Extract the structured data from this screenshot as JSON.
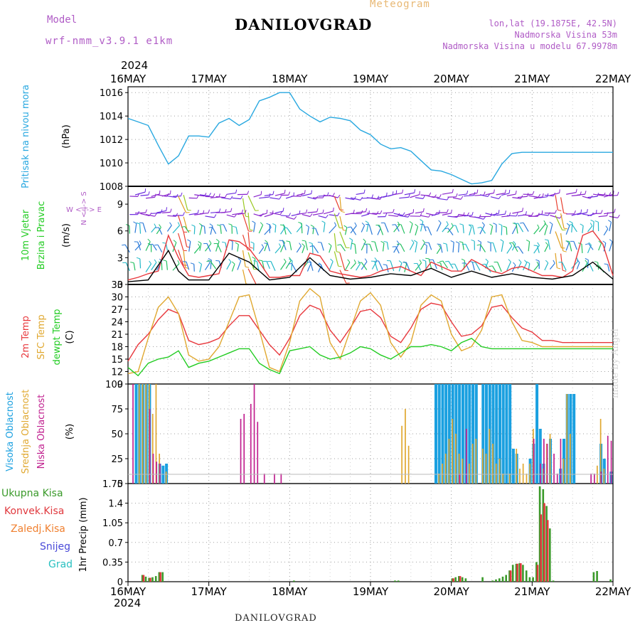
{
  "header": {
    "model_label": "Model",
    "model_name": "wrf-nmm_v3.9.1 e1km",
    "title": "DANILOVGRAD",
    "meteogram_label": "Meteogram",
    "lonlat": "lon,lat (19.1875E, 42.5N)",
    "elevation": "Nadmorska Visina 53m",
    "model_elevation": "Nadmorska Visina u modelu 67.9978m"
  },
  "footer": {
    "station": "DANILOVGRAD",
    "credit": "made by Angel"
  },
  "time_axis": {
    "year_top": "2024",
    "year_bottom": "2024",
    "labels": [
      "16MAY",
      "17MAY",
      "18MAY",
      "19MAY",
      "20MAY",
      "21MAY",
      "22MAY"
    ],
    "days": 6,
    "hours": 144
  },
  "colors": {
    "pressure": "#29a8e0",
    "temp2m": "#e8383d",
    "sfc": "#e0a830",
    "dewpt": "#22cc22",
    "cloud_high": "#1aa0e0",
    "cloud_mid": "#e0a830",
    "cloud_low": "#c0208f",
    "precip_total": "#3a9a2a",
    "precip_conv": "#e0383d",
    "precip_frozen": "#f08030",
    "precip_snow": "#4a4ad8",
    "precip_hail": "#28c0c0"
  },
  "chart_data": [
    {
      "type": "line",
      "panel": "pressure",
      "ylabel_left": "Pritisak na nivou mora",
      "unit": "(hPa)",
      "ylim": [
        1008,
        1016.5
      ],
      "yticks": [
        "1008",
        "1010",
        "1012",
        "1014",
        "1016"
      ],
      "grid": true,
      "series": [
        {
          "color_key": "pressure",
          "x": [
            0,
            3,
            6,
            9,
            12,
            15,
            18,
            21,
            24,
            27,
            30,
            33,
            36,
            39,
            42,
            45,
            48,
            51,
            54,
            57,
            60,
            63,
            66,
            69,
            72,
            75,
            78,
            81,
            84,
            87,
            90,
            93,
            96,
            99,
            102,
            105,
            108,
            111,
            114,
            117,
            120,
            123,
            126,
            129,
            132,
            135,
            138,
            141,
            144
          ],
          "values": [
            1013.8,
            1013.5,
            1013.2,
            1011.5,
            1009.9,
            1010.6,
            1012.3,
            1012.3,
            1012.2,
            1013.4,
            1013.8,
            1013.2,
            1013.7,
            1015.3,
            1015.6,
            1016.0,
            1016.0,
            1014.6,
            1014.0,
            1013.5,
            1013.9,
            1013.8,
            1013.6,
            1012.8,
            1012.4,
            1011.6,
            1011.2,
            1011.3,
            1011.0,
            1010.2,
            1009.4,
            1009.3,
            1009.0,
            1008.6,
            1008.2,
            1008.3,
            1008.5,
            1009.9,
            1010.8,
            1010.9,
            1010.9,
            1010.9,
            1010.9,
            1010.9,
            1010.9,
            1010.9,
            1010.9,
            1010.9,
            1010.9
          ]
        }
      ]
    },
    {
      "type": "line",
      "panel": "wind",
      "ylabel_left": "10m Vjetar",
      "ylabel_left2": "Brzina i Pravac",
      "unit": "(m/s)",
      "ylim": [
        0,
        11
      ],
      "yticks": [
        "0",
        "3",
        "6",
        "9"
      ],
      "compass": "W <-|-> E",
      "compass_v": "N <-|-> S",
      "series": [
        {
          "name": "",
          "color_key": "temp2m",
          "x": [
            0,
            3,
            6,
            9,
            12,
            15,
            18,
            21,
            24,
            27,
            30,
            33,
            36,
            39,
            42,
            45,
            48,
            51,
            54,
            57,
            60,
            63,
            66,
            69,
            72,
            75,
            78,
            81,
            84,
            87,
            90,
            93,
            96,
            99,
            102,
            105,
            108,
            111,
            114,
            117,
            120,
            123,
            126,
            129,
            132,
            135,
            138,
            141,
            144
          ],
          "values": [
            0.5,
            0.8,
            1.2,
            1.5,
            5.5,
            3.0,
            1.0,
            0.8,
            1.0,
            1.2,
            5.0,
            4.8,
            4.0,
            2.5,
            0.8,
            0.8,
            1.0,
            1.0,
            3.5,
            3.2,
            1.5,
            1.2,
            1.0,
            0.8,
            1.0,
            1.5,
            1.8,
            2.0,
            1.5,
            1.0,
            2.5,
            2.0,
            1.5,
            1.5,
            2.8,
            2.2,
            1.5,
            1.2,
            1.8,
            2.0,
            1.5,
            1.0,
            1.0,
            0.8,
            1.5,
            5.5,
            6.0,
            4.5,
            1.0
          ]
        },
        {
          "name": "",
          "color_key": "black",
          "x": [
            0,
            6,
            12,
            15,
            18,
            24,
            30,
            36,
            42,
            48,
            54,
            60,
            66,
            72,
            78,
            84,
            90,
            96,
            102,
            108,
            114,
            120,
            126,
            132,
            138,
            144
          ],
          "values": [
            0.3,
            0.5,
            3.8,
            1.5,
            0.5,
            0.5,
            3.5,
            2.5,
            0.5,
            0.8,
            3.0,
            1.0,
            0.6,
            0.8,
            1.2,
            1.0,
            1.8,
            0.8,
            1.5,
            0.8,
            1.2,
            0.8,
            0.6,
            1.0,
            2.5,
            0.6
          ]
        }
      ]
    },
    {
      "type": "line",
      "panel": "temperature",
      "ylabel_left": "2m Temp",
      "ylabel_left2": "SFC Temp",
      "ylabel_left3": "dewpt Temp",
      "unit": "(C)",
      "ylim": [
        9,
        33
      ],
      "yticks": [
        "9",
        "12",
        "15",
        "18",
        "21",
        "24",
        "27",
        "30",
        "33"
      ],
      "grid": true,
      "series": [
        {
          "name": "2m Temp",
          "color_key": "temp2m",
          "x": [
            0,
            3,
            6,
            9,
            12,
            15,
            18,
            21,
            24,
            27,
            30,
            33,
            36,
            39,
            42,
            45,
            48,
            51,
            54,
            57,
            60,
            63,
            66,
            69,
            72,
            75,
            78,
            81,
            84,
            87,
            90,
            93,
            96,
            99,
            102,
            105,
            108,
            111,
            114,
            117,
            120,
            123,
            126,
            129,
            132,
            135,
            138,
            141,
            144
          ],
          "values": [
            14.5,
            18.5,
            21,
            24.5,
            27,
            26,
            19.5,
            18.5,
            19,
            20,
            23,
            25.5,
            25.5,
            22,
            18.5,
            16,
            20,
            25.5,
            28,
            27,
            22,
            19,
            22.5,
            26.5,
            27,
            25,
            20.5,
            19,
            22.5,
            27,
            28.5,
            28,
            24,
            20.5,
            21,
            23,
            27.5,
            28,
            25,
            22.5,
            21.5,
            19.5,
            19.5,
            19,
            19,
            19,
            19,
            19,
            19
          ]
        },
        {
          "name": "SFC Temp",
          "color_key": "sfc",
          "x": [
            0,
            3,
            6,
            9,
            12,
            15,
            18,
            21,
            24,
            27,
            30,
            33,
            36,
            39,
            42,
            45,
            48,
            51,
            54,
            57,
            60,
            63,
            66,
            69,
            72,
            75,
            78,
            81,
            84,
            87,
            90,
            93,
            96,
            99,
            102,
            105,
            108,
            111,
            114,
            117,
            120,
            123,
            126,
            129,
            132,
            135,
            138,
            141,
            144
          ],
          "values": [
            11.5,
            12,
            20,
            27.5,
            30,
            26,
            16,
            14.5,
            15,
            18,
            24,
            30,
            30.5,
            22,
            13,
            12,
            19,
            29,
            32,
            30,
            19,
            15,
            22,
            29,
            31,
            28,
            19,
            15.5,
            19,
            28,
            30.5,
            29,
            21,
            17,
            18,
            22,
            30,
            30.5,
            24,
            19.5,
            19,
            18,
            18,
            18,
            18,
            18,
            18,
            18,
            18
          ]
        },
        {
          "name": "dewpt Temp",
          "color_key": "dewpt",
          "x": [
            0,
            3,
            6,
            9,
            12,
            15,
            18,
            21,
            24,
            27,
            30,
            33,
            36,
            39,
            42,
            45,
            48,
            51,
            54,
            57,
            60,
            63,
            66,
            69,
            72,
            75,
            78,
            81,
            84,
            87,
            90,
            93,
            96,
            99,
            102,
            105,
            108,
            111,
            114,
            117,
            120,
            123,
            126,
            129,
            132,
            135,
            138,
            141,
            144
          ],
          "values": [
            13,
            11,
            14,
            15,
            15.5,
            17,
            13,
            14,
            14.5,
            15.5,
            16.5,
            17.5,
            17.5,
            14,
            12.5,
            11.5,
            17,
            17.5,
            18,
            16,
            15,
            15.5,
            16.5,
            18,
            17.5,
            16,
            15,
            16.5,
            18,
            18,
            18.5,
            18,
            17,
            19,
            20,
            18,
            17.5,
            17.5,
            17.5,
            17.5,
            17.5,
            17.5,
            17.5,
            17.5,
            17.5,
            17.5,
            17.5,
            17.5,
            17.5
          ]
        }
      ]
    },
    {
      "type": "bar",
      "panel": "clouds",
      "ylabel_left": "Visoka Oblacnost",
      "ylabel_left2": "Srednja Oblacnost",
      "ylabel_left3": "Niska Oblacnost",
      "unit": "(%)",
      "ylim": [
        0,
        100
      ],
      "yticks": [
        "0",
        "25",
        "50",
        "75",
        "100"
      ],
      "grid": true,
      "series": [
        {
          "name": "Visoka Oblacnost",
          "color_key": "cloud_high",
          "x": [
            2,
            3,
            4,
            5,
            6,
            9,
            10,
            11,
            91,
            92,
            93,
            94,
            95,
            96,
            97,
            98,
            99,
            100,
            101,
            102,
            103,
            105,
            106,
            107,
            108,
            109,
            110,
            111,
            112,
            113,
            114,
            115,
            119,
            120,
            121,
            122,
            123,
            125,
            128,
            129,
            130,
            131,
            132,
            140,
            141,
            143
          ],
          "values": [
            100,
            100,
            100,
            100,
            100,
            20,
            18,
            20,
            100,
            100,
            100,
            100,
            100,
            100,
            100,
            100,
            100,
            100,
            100,
            100,
            100,
            100,
            100,
            100,
            100,
            100,
            100,
            100,
            100,
            100,
            35,
            30,
            25,
            40,
            100,
            55,
            20,
            45,
            15,
            45,
            90,
            90,
            90,
            40,
            25,
            12
          ]
        },
        {
          "name": "Srednja Oblacnost",
          "color_key": "cloud_mid",
          "x": [
            3,
            4,
            5,
            6,
            7,
            8,
            9,
            11,
            81,
            82,
            83,
            92,
            93,
            94,
            95,
            96,
            97,
            98,
            99,
            101,
            102,
            103,
            105,
            106,
            107,
            108,
            109,
            110,
            111,
            113,
            115,
            116,
            117,
            118,
            119,
            120,
            123,
            124,
            125,
            129,
            130,
            131,
            139,
            140,
            141
          ],
          "values": [
            100,
            100,
            100,
            100,
            70,
            100,
            30,
            12,
            58,
            75,
            38,
            10,
            20,
            30,
            45,
            65,
            50,
            30,
            25,
            20,
            40,
            45,
            35,
            30,
            55,
            40,
            20,
            25,
            10,
            10,
            35,
            15,
            20,
            10,
            20,
            55,
            15,
            40,
            50,
            25,
            90,
            50,
            18,
            65,
            15
          ]
        },
        {
          "name": "Niska Oblacnost",
          "color_key": "cloud_low",
          "x": [
            1,
            6,
            7,
            8,
            9,
            33,
            34,
            36,
            37,
            38,
            40,
            43,
            45,
            98,
            100,
            120,
            122,
            123,
            124,
            126,
            127,
            128,
            137,
            138,
            140,
            142,
            143
          ],
          "values": [
            100,
            75,
            30,
            22,
            20,
            65,
            70,
            80,
            100,
            62,
            10,
            10,
            10,
            10,
            55,
            45,
            20,
            45,
            40,
            30,
            10,
            45,
            10,
            10,
            12,
            48,
            43
          ]
        }
      ]
    },
    {
      "type": "bar",
      "panel": "precip",
      "ylabel_left": "1hr Precip (mm)",
      "legend": [
        "Ukupna Kisa",
        "Konvek.Kisa",
        "Zaledj.Kisa",
        "Snijeg",
        "Grad"
      ],
      "ylim": [
        0,
        1.75
      ],
      "yticks": [
        "0",
        "0.35",
        "0.7",
        "1.05",
        "1.4",
        "1.75"
      ],
      "grid": true,
      "series": [
        {
          "name": "Ukupna Kisa",
          "color_key": "precip_total",
          "x": [
            4,
            5,
            6,
            7,
            8,
            9,
            10,
            49,
            79,
            80,
            96,
            97,
            98,
            99,
            100,
            105,
            108,
            109,
            110,
            111,
            112,
            113,
            114,
            115,
            116,
            117,
            118,
            119,
            120,
            121,
            122,
            123,
            124,
            125,
            126,
            138,
            139,
            143
          ],
          "values": [
            0.12,
            0.09,
            0.07,
            0.08,
            0.1,
            0.17,
            0.17,
            0.02,
            0.02,
            0.02,
            0.06,
            0.08,
            0.1,
            0.08,
            0.06,
            0.08,
            0.02,
            0.04,
            0.06,
            0.09,
            0.12,
            0.2,
            0.3,
            0.32,
            0.33,
            0.3,
            0.2,
            0.08,
            0.08,
            0.35,
            1.7,
            1.65,
            1.35,
            0.95,
            0.02,
            0.17,
            0.19,
            0.04
          ]
        },
        {
          "name": "Konvek.Kisa",
          "color_key": "precip_conv",
          "x": [
            4,
            6,
            9,
            96,
            98,
            113,
            115,
            116,
            121,
            122,
            123,
            124
          ],
          "values": [
            0.12,
            0.07,
            0.17,
            0.06,
            0.1,
            0.2,
            0.32,
            0.33,
            0.3,
            1.2,
            1.4,
            1.1
          ]
        }
      ]
    }
  ]
}
